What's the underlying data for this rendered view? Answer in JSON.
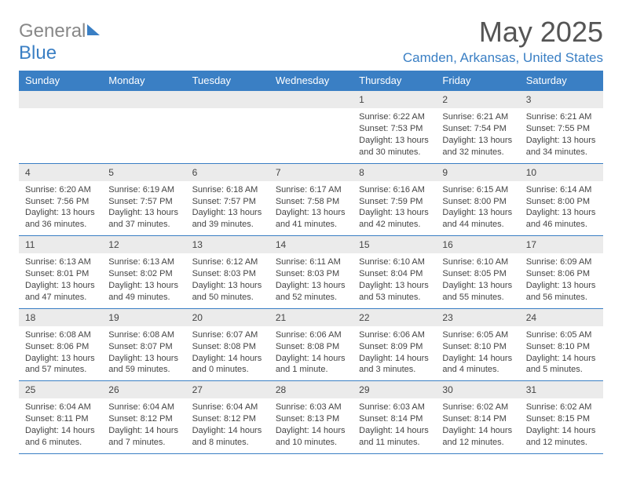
{
  "brand": {
    "part1": "General",
    "part2": "Blue"
  },
  "title": "May 2025",
  "location": "Camden, Arkansas, United States",
  "colors": {
    "accent": "#3a7fc4",
    "header_text": "#ffffff",
    "daynum_bg": "#ebebeb",
    "body_text": "#444444",
    "logo_gray": "#888888"
  },
  "weekdays": [
    "Sunday",
    "Monday",
    "Tuesday",
    "Wednesday",
    "Thursday",
    "Friday",
    "Saturday"
  ],
  "weeks": [
    [
      null,
      null,
      null,
      null,
      {
        "n": "1",
        "sr": "6:22 AM",
        "ss": "7:53 PM",
        "dl": "13 hours and 30 minutes."
      },
      {
        "n": "2",
        "sr": "6:21 AM",
        "ss": "7:54 PM",
        "dl": "13 hours and 32 minutes."
      },
      {
        "n": "3",
        "sr": "6:21 AM",
        "ss": "7:55 PM",
        "dl": "13 hours and 34 minutes."
      }
    ],
    [
      {
        "n": "4",
        "sr": "6:20 AM",
        "ss": "7:56 PM",
        "dl": "13 hours and 36 minutes."
      },
      {
        "n": "5",
        "sr": "6:19 AM",
        "ss": "7:57 PM",
        "dl": "13 hours and 37 minutes."
      },
      {
        "n": "6",
        "sr": "6:18 AM",
        "ss": "7:57 PM",
        "dl": "13 hours and 39 minutes."
      },
      {
        "n": "7",
        "sr": "6:17 AM",
        "ss": "7:58 PM",
        "dl": "13 hours and 41 minutes."
      },
      {
        "n": "8",
        "sr": "6:16 AM",
        "ss": "7:59 PM",
        "dl": "13 hours and 42 minutes."
      },
      {
        "n": "9",
        "sr": "6:15 AM",
        "ss": "8:00 PM",
        "dl": "13 hours and 44 minutes."
      },
      {
        "n": "10",
        "sr": "6:14 AM",
        "ss": "8:00 PM",
        "dl": "13 hours and 46 minutes."
      }
    ],
    [
      {
        "n": "11",
        "sr": "6:13 AM",
        "ss": "8:01 PM",
        "dl": "13 hours and 47 minutes."
      },
      {
        "n": "12",
        "sr": "6:13 AM",
        "ss": "8:02 PM",
        "dl": "13 hours and 49 minutes."
      },
      {
        "n": "13",
        "sr": "6:12 AM",
        "ss": "8:03 PM",
        "dl": "13 hours and 50 minutes."
      },
      {
        "n": "14",
        "sr": "6:11 AM",
        "ss": "8:03 PM",
        "dl": "13 hours and 52 minutes."
      },
      {
        "n": "15",
        "sr": "6:10 AM",
        "ss": "8:04 PM",
        "dl": "13 hours and 53 minutes."
      },
      {
        "n": "16",
        "sr": "6:10 AM",
        "ss": "8:05 PM",
        "dl": "13 hours and 55 minutes."
      },
      {
        "n": "17",
        "sr": "6:09 AM",
        "ss": "8:06 PM",
        "dl": "13 hours and 56 minutes."
      }
    ],
    [
      {
        "n": "18",
        "sr": "6:08 AM",
        "ss": "8:06 PM",
        "dl": "13 hours and 57 minutes."
      },
      {
        "n": "19",
        "sr": "6:08 AM",
        "ss": "8:07 PM",
        "dl": "13 hours and 59 minutes."
      },
      {
        "n": "20",
        "sr": "6:07 AM",
        "ss": "8:08 PM",
        "dl": "14 hours and 0 minutes."
      },
      {
        "n": "21",
        "sr": "6:06 AM",
        "ss": "8:08 PM",
        "dl": "14 hours and 1 minute."
      },
      {
        "n": "22",
        "sr": "6:06 AM",
        "ss": "8:09 PM",
        "dl": "14 hours and 3 minutes."
      },
      {
        "n": "23",
        "sr": "6:05 AM",
        "ss": "8:10 PM",
        "dl": "14 hours and 4 minutes."
      },
      {
        "n": "24",
        "sr": "6:05 AM",
        "ss": "8:10 PM",
        "dl": "14 hours and 5 minutes."
      }
    ],
    [
      {
        "n": "25",
        "sr": "6:04 AM",
        "ss": "8:11 PM",
        "dl": "14 hours and 6 minutes."
      },
      {
        "n": "26",
        "sr": "6:04 AM",
        "ss": "8:12 PM",
        "dl": "14 hours and 7 minutes."
      },
      {
        "n": "27",
        "sr": "6:04 AM",
        "ss": "8:12 PM",
        "dl": "14 hours and 8 minutes."
      },
      {
        "n": "28",
        "sr": "6:03 AM",
        "ss": "8:13 PM",
        "dl": "14 hours and 10 minutes."
      },
      {
        "n": "29",
        "sr": "6:03 AM",
        "ss": "8:14 PM",
        "dl": "14 hours and 11 minutes."
      },
      {
        "n": "30",
        "sr": "6:02 AM",
        "ss": "8:14 PM",
        "dl": "14 hours and 12 minutes."
      },
      {
        "n": "31",
        "sr": "6:02 AM",
        "ss": "8:15 PM",
        "dl": "14 hours and 12 minutes."
      }
    ]
  ],
  "labels": {
    "sunrise": "Sunrise:",
    "sunset": "Sunset:",
    "daylight": "Daylight:"
  }
}
